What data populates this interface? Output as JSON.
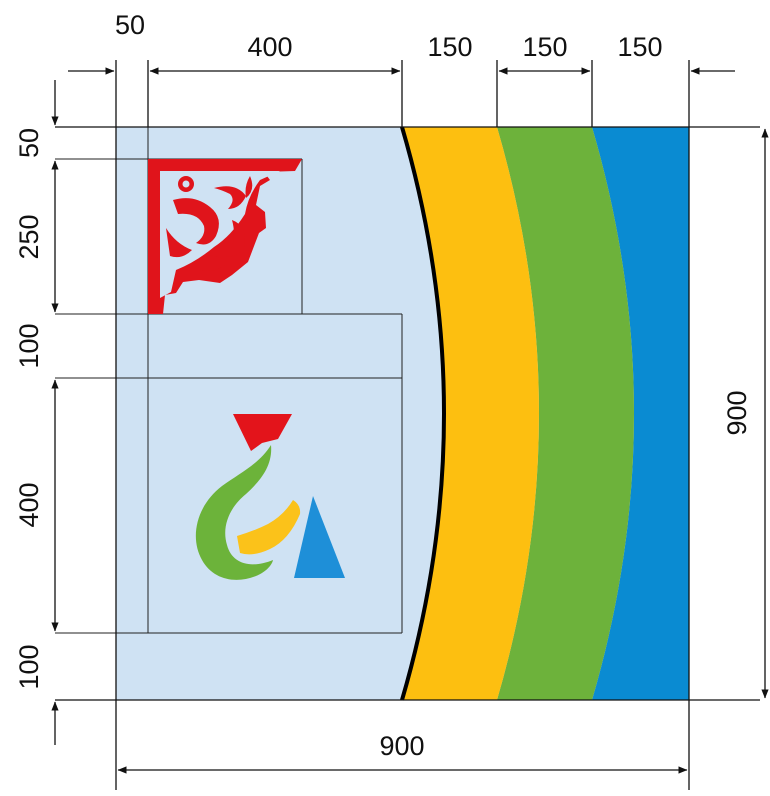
{
  "dimensions": {
    "top": [
      "50",
      "400",
      "150",
      "150",
      "150"
    ],
    "left": [
      "50",
      "250",
      "100",
      "400",
      "100"
    ],
    "right_height": "900",
    "bottom_width": "900"
  },
  "colors": {
    "panel": "#cfe2f3",
    "stripe_yellow": "#fdbf10",
    "stripe_green": "#6db23b",
    "stripe_blue": "#0a8bd2",
    "ornament_red": "#e0141b",
    "arc_edge": "#000000",
    "logo_red": "#e3141b",
    "logo_green": "#6cb33a",
    "logo_yellow": "#fbc21a",
    "logo_blue": "#1e8fd8"
  },
  "icons": {
    "ornament": "corner-ornament-icon",
    "logo": "emblem-logo-icon"
  }
}
